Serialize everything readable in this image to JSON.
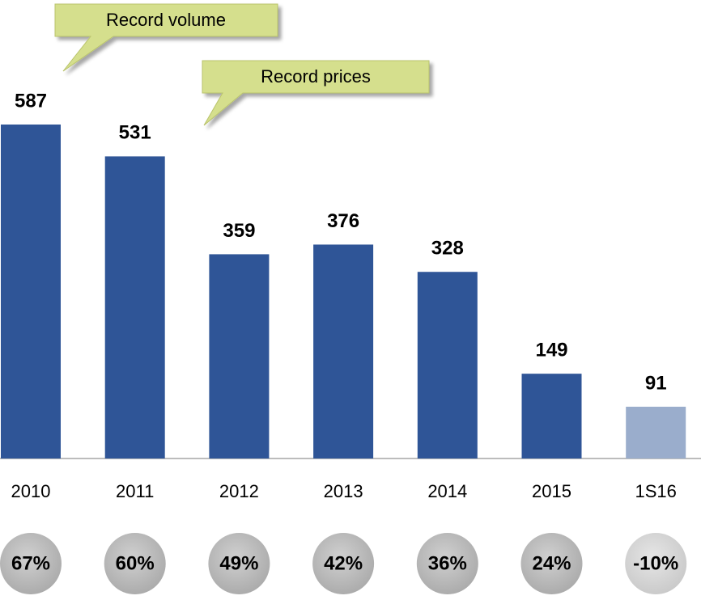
{
  "chart_data": {
    "type": "bar",
    "categories": [
      "2010",
      "2011",
      "2012",
      "2013",
      "2014",
      "2015",
      "1S16"
    ],
    "values": [
      587,
      531,
      359,
      376,
      328,
      149,
      91
    ],
    "colors": [
      "#2f5597",
      "#2f5597",
      "#2f5597",
      "#2f5597",
      "#2f5597",
      "#2f5597",
      "#9aadcc"
    ],
    "annotations": [
      "Record volume",
      "Record prices"
    ],
    "badge_values": [
      67,
      60,
      49,
      42,
      36,
      24,
      -10
    ],
    "badge_labels": [
      "67%",
      "60%",
      "49%",
      "42%",
      "36%",
      "24%",
      "-10%"
    ]
  }
}
